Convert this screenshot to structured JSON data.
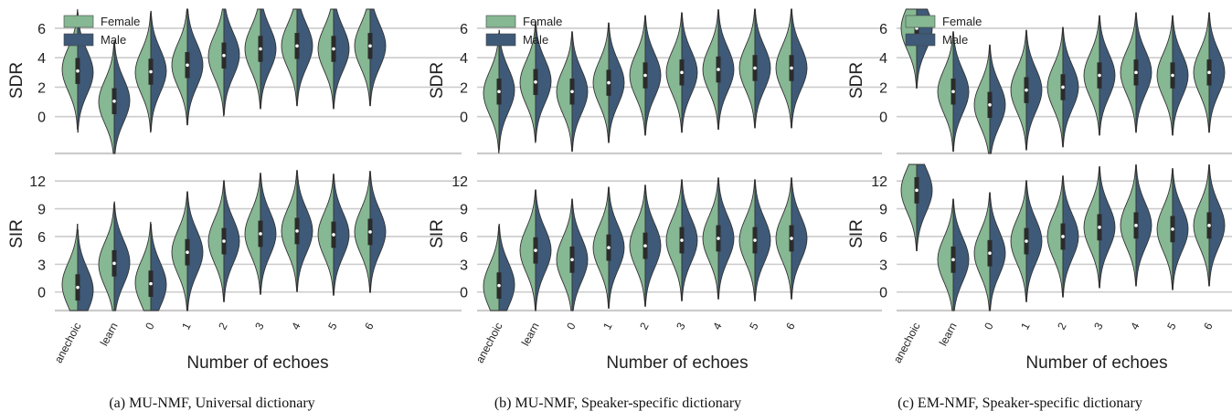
{
  "colors": {
    "female": "#86b893",
    "male": "#3e5a78",
    "grid": "#cccccc",
    "edge": "#333333"
  },
  "chart_data": [
    {
      "type": "violin",
      "caption": "(a) MU-NMF, Universal dictionary",
      "xlabel": "Number of echoes",
      "categories": [
        "anechoic",
        "learn",
        "0",
        "1",
        "2",
        "3",
        "4",
        "5",
        "6"
      ],
      "legend": [
        "Female",
        "Male"
      ],
      "legend_position": "top-left",
      "rows": [
        {
          "ylabel": "SDR",
          "yticks": [
            0,
            2,
            4,
            6
          ],
          "ylim": [
            -2.5,
            7.3
          ],
          "female_median": [
            3.2,
            1.0,
            3.0,
            3.5,
            4.1,
            4.6,
            4.8,
            4.6,
            4.8
          ],
          "male_median": [
            3.0,
            1.1,
            3.1,
            3.5,
            4.2,
            4.6,
            4.8,
            4.6,
            4.8
          ]
        },
        {
          "ylabel": "SIR",
          "yticks": [
            0,
            3,
            6,
            9,
            12
          ],
          "ylim": [
            -2.0,
            13.8
          ],
          "female_median": [
            0.8,
            3.0,
            1.0,
            4.3,
            5.5,
            6.3,
            6.6,
            6.2,
            6.5
          ],
          "male_median": [
            0.2,
            3.2,
            0.8,
            4.3,
            5.5,
            6.3,
            6.6,
            6.2,
            6.5
          ]
        }
      ]
    },
    {
      "type": "violin",
      "caption": "(b) MU-NMF, Speaker-specific dictionary",
      "xlabel": "Number of echoes",
      "categories": [
        "anechoic",
        "learn",
        "0",
        "1",
        "2",
        "3",
        "4",
        "5",
        "6"
      ],
      "legend": [
        "Female",
        "Male"
      ],
      "legend_position": "top-left",
      "rows": [
        {
          "ylabel": "SDR",
          "yticks": [
            0,
            2,
            4,
            6
          ],
          "ylim": [
            -2.5,
            7.3
          ],
          "female_median": [
            1.6,
            2.3,
            1.7,
            2.3,
            2.8,
            3.0,
            3.2,
            3.3,
            3.3
          ],
          "male_median": [
            1.8,
            2.4,
            1.7,
            2.3,
            2.8,
            3.0,
            3.2,
            3.3,
            3.3
          ]
        },
        {
          "ylabel": "SIR",
          "yticks": [
            0,
            3,
            6,
            9,
            12
          ],
          "ylim": [
            -2.0,
            13.8
          ],
          "female_median": [
            0.6,
            4.5,
            3.5,
            4.8,
            5.0,
            5.6,
            5.8,
            5.6,
            5.8
          ],
          "male_median": [
            0.8,
            4.5,
            3.5,
            4.8,
            5.0,
            5.6,
            5.8,
            5.6,
            5.8
          ]
        }
      ]
    },
    {
      "type": "violin",
      "caption": "(c) EM-NMF, Speaker-specific dictionary",
      "xlabel": "Number of echoes",
      "categories": [
        "anechoic",
        "learn",
        "0",
        "1",
        "2",
        "3",
        "4",
        "5",
        "6"
      ],
      "legend": [
        "Female",
        "Male"
      ],
      "legend_position": "top-left",
      "rows": [
        {
          "ylabel": "SDR",
          "yticks": [
            0,
            2,
            4,
            6
          ],
          "ylim": [
            -2.5,
            7.3
          ],
          "female_median": [
            6.0,
            1.7,
            0.8,
            1.8,
            2.0,
            2.8,
            3.0,
            2.8,
            3.0
          ],
          "male_median": [
            6.0,
            1.7,
            0.8,
            1.8,
            2.0,
            2.8,
            3.0,
            2.8,
            3.0
          ]
        },
        {
          "ylabel": "SIR",
          "yticks": [
            0,
            3,
            6,
            9,
            12
          ],
          "ylim": [
            -2.0,
            13.8
          ],
          "female_median": [
            11.0,
            3.5,
            4.2,
            5.5,
            6.0,
            7.0,
            7.2,
            6.8,
            7.2
          ],
          "male_median": [
            11.0,
            3.5,
            4.2,
            5.5,
            6.0,
            7.0,
            7.2,
            6.8,
            7.2
          ]
        }
      ]
    }
  ]
}
